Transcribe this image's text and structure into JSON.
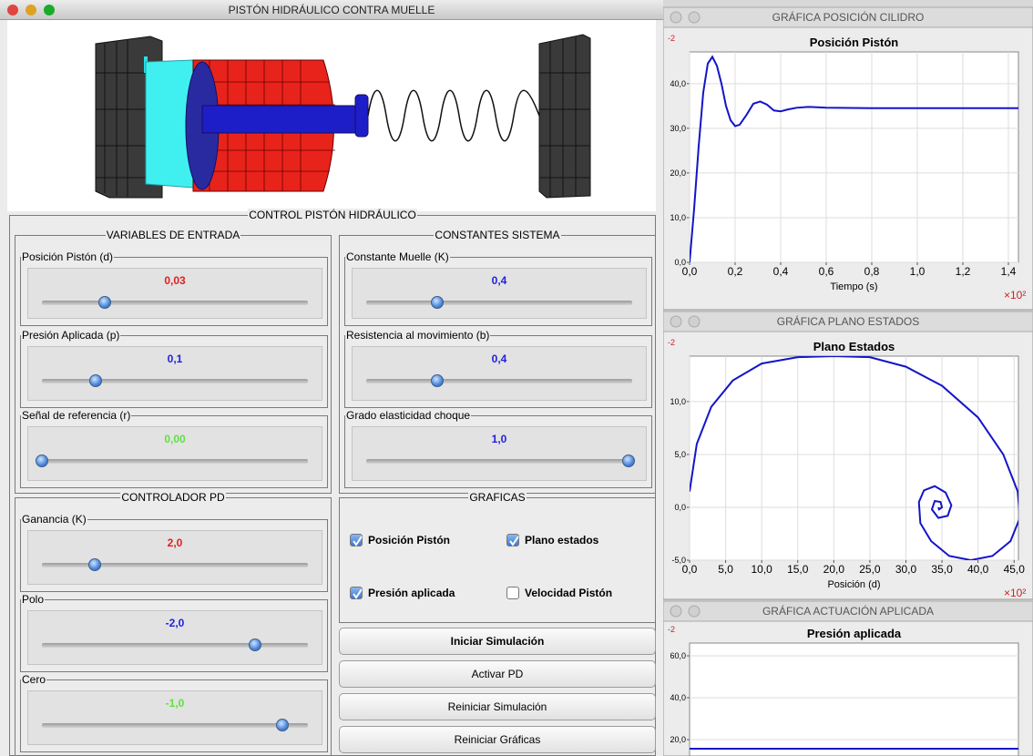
{
  "main_window": {
    "title": "PISTÓN HIDRÁULICO CONTRA MUELLE",
    "control_panel": {
      "title": "CONTROL PISTÓN HIDRÁULICO",
      "input_variables": {
        "title": "VARIABLES DE ENTRADA",
        "sliders": [
          {
            "label": "Posición Pistón (d)",
            "value": "0,03",
            "color": "#e02020"
          },
          {
            "label": "Presión Aplicada (p)",
            "value": "0,1",
            "color": "#2020e0"
          },
          {
            "label": "Señal de referencia (r)",
            "value": "0,00",
            "color": "#60e040"
          }
        ]
      },
      "system_constants": {
        "title": "CONSTANTES SISTEMA",
        "sliders": [
          {
            "label": "Constante Muelle (K)",
            "value": "0,4",
            "color": "#2020e0"
          },
          {
            "label": "Resistencia al movimiento (b)",
            "value": "0,4",
            "color": "#2020e0"
          },
          {
            "label": "Grado elasticidad choque",
            "value": "1,0",
            "color": "#2020e0"
          }
        ]
      },
      "pd_controller": {
        "title": "CONTROLADOR PD",
        "sliders": [
          {
            "label": "Ganancia (K)",
            "value": "2,0",
            "color": "#e02020"
          },
          {
            "label": "Polo",
            "value": "-2,0",
            "color": "#2020e0"
          },
          {
            "label": "Cero",
            "value": "-1,0",
            "color": "#60e040"
          }
        ]
      },
      "graphs": {
        "title": "GRAFICAS",
        "checkboxes": [
          {
            "label": "Posición Pistón",
            "checked": true
          },
          {
            "label": "Plano estados",
            "checked": true
          },
          {
            "label": "Presión aplicada",
            "checked": true
          },
          {
            "label": "Velocidad Pistón",
            "checked": false
          }
        ]
      },
      "buttons": [
        "Iniciar Simulación",
        "Activar PD",
        "Reiniciar Simulación",
        "Reiniciar Gráficas"
      ]
    }
  },
  "chart_windows": [
    {
      "window_title": "GRÁFICA POSICIÓN CILIDRO",
      "chart_data": {
        "type": "line",
        "title": "Posición Pistón",
        "x_label": "Tiempo (s)",
        "y_exponent": "-2",
        "x_multiplier": "×10²",
        "xlim": [
          0,
          1.444
        ],
        "ylim": [
          0,
          47.1
        ],
        "grid": true,
        "xticks": [
          {
            "value": 0,
            "label": "0,0"
          },
          {
            "value": 0.2,
            "label": "0,2"
          },
          {
            "value": 0.4,
            "label": "0,4"
          },
          {
            "value": 0.6,
            "label": "0,6"
          },
          {
            "value": 0.8,
            "label": "0,8"
          },
          {
            "value": 1,
            "label": "1,0"
          },
          {
            "value": 1.2,
            "label": "1,2"
          },
          {
            "value": 1.4,
            "label": "1,4"
          }
        ],
        "yticks": [
          {
            "value": 0,
            "label": "0,0"
          },
          {
            "value": 10,
            "label": "10,0"
          },
          {
            "value": 20,
            "label": "20,0"
          },
          {
            "value": 30,
            "label": "30,0"
          },
          {
            "value": 40,
            "label": "40,0"
          }
        ],
        "x": [
          0,
          0.02,
          0.04,
          0.06,
          0.08,
          0.1,
          0.12,
          0.14,
          0.16,
          0.18,
          0.2,
          0.22,
          0.25,
          0.28,
          0.31,
          0.34,
          0.37,
          0.4,
          0.43,
          0.47,
          0.52,
          0.6,
          0.8,
          1.0,
          1.2,
          1.444
        ],
        "series": [
          {
            "color": "#1414c8",
            "values": [
              0,
              12,
              26,
              38,
              44.5,
              46,
              44,
              40,
              35,
              31.8,
              30.5,
              30.8,
              33,
              35.5,
              36,
              35.3,
              34,
              33.8,
              34.2,
              34.6,
              34.8,
              34.6,
              34.5,
              34.5,
              34.5,
              34.5
            ]
          }
        ]
      }
    },
    {
      "window_title": "GRÁFICA PLANO ESTADOS",
      "chart_data": {
        "type": "line",
        "title": "Plano Estados",
        "x_label": "Posición (d)",
        "y_exponent": "-2",
        "x_multiplier": "×10²",
        "xlim": [
          0,
          45.6
        ],
        "ylim": [
          -5,
          14.3
        ],
        "grid": true,
        "xticks": [
          {
            "value": 0,
            "label": "0,0"
          },
          {
            "value": 5,
            "label": "5,0"
          },
          {
            "value": 10,
            "label": "10,0"
          },
          {
            "value": 15,
            "label": "15,0"
          },
          {
            "value": 20,
            "label": "20,0"
          },
          {
            "value": 25,
            "label": "25,0"
          },
          {
            "value": 30,
            "label": "30,0"
          },
          {
            "value": 35,
            "label": "35,0"
          },
          {
            "value": 40,
            "label": "40,0"
          },
          {
            "value": 45,
            "label": "45,0"
          }
        ],
        "yticks": [
          {
            "value": -5,
            "label": "-5,0"
          },
          {
            "value": 0,
            "label": "0,0"
          },
          {
            "value": 5,
            "label": "5,0"
          },
          {
            "value": 10,
            "label": "10,0"
          }
        ],
        "x": [
          0,
          1,
          3,
          6,
          10,
          15,
          20,
          25,
          30,
          35,
          40,
          43.5,
          45.5,
          45.8,
          44.5,
          42,
          39,
          36,
          33.5,
          32,
          31.8,
          32.5,
          34,
          35.5,
          36.3,
          35.8,
          34.5,
          33.6,
          34,
          34.8,
          35,
          34.6,
          34.5
        ],
        "series": [
          {
            "color": "#1414c8",
            "values": [
              1.5,
              6,
              9.5,
              12,
              13.6,
              14.2,
              14.3,
              14.2,
              13.3,
              11.5,
              8.5,
              5,
              1.5,
              -1,
              -3.2,
              -4.6,
              -5,
              -4.6,
              -3.2,
              -1.5,
              0.5,
              1.6,
              2,
              1.4,
              0.2,
              -0.8,
              -1,
              -0.2,
              0.6,
              0.5,
              0,
              -0.2,
              0
            ]
          }
        ]
      }
    },
    {
      "window_title": "GRÁFICA ACTUACIÓN APLICADA",
      "chart_data": {
        "type": "line",
        "title": "Presión aplicada",
        "y_exponent": "-2",
        "xlim": [
          0,
          1.444
        ],
        "ylim": [
          12.2,
          66.1
        ],
        "grid": true,
        "yticks": [
          {
            "value": 20,
            "label": "20,0"
          },
          {
            "value": 40,
            "label": "40,0"
          },
          {
            "value": 60,
            "label": "60,0"
          }
        ],
        "x": [
          0,
          1.444
        ],
        "series": [
          {
            "color": "#1414c8",
            "values": [
              15.7,
              15.7
            ]
          }
        ]
      }
    }
  ]
}
